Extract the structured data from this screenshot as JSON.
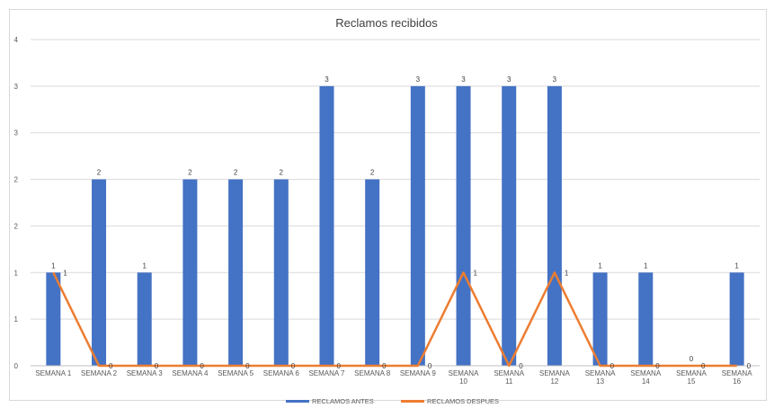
{
  "chart_data": {
    "type": "bar",
    "title": "Reclamos recibidos",
    "xlabel": "",
    "ylabel": "",
    "ylim": [
      0,
      3.5
    ],
    "y_tick_labels": [
      "0",
      "1",
      "1",
      "2",
      "2",
      "3",
      "3",
      "4"
    ],
    "categories": [
      [
        "SEMANA 1"
      ],
      [
        "SEMANA 2"
      ],
      [
        "SEMANA 3"
      ],
      [
        "SEMANA 4"
      ],
      [
        "SEMANA 5"
      ],
      [
        "SEMANA 6"
      ],
      [
        "SEMANA 7"
      ],
      [
        "SEMANA 8"
      ],
      [
        "SEMANA 9"
      ],
      [
        "SEMANA",
        "10"
      ],
      [
        "SEMANA",
        "11"
      ],
      [
        "SEMANA",
        "12"
      ],
      [
        "SEMANA",
        "13"
      ],
      [
        "SEMANA",
        "14"
      ],
      [
        "SEMANA",
        "15"
      ],
      [
        "SEMANA",
        "16"
      ]
    ],
    "series": [
      {
        "name": "RECLAMOS ANTES",
        "type": "bar",
        "color": "#4472c4",
        "values": [
          1,
          2,
          1,
          2,
          2,
          2,
          3,
          2,
          3,
          3,
          3,
          3,
          1,
          1,
          0,
          1
        ],
        "labels": [
          "1",
          "2",
          "1",
          "2",
          "2",
          "2",
          "3",
          "2",
          "3",
          "3",
          "3",
          "3",
          "1",
          "1",
          "0",
          "1"
        ]
      },
      {
        "name": "RECLAMOS DESPUES",
        "type": "line",
        "color": "#ed7d31",
        "values": [
          1,
          0,
          0,
          0,
          0,
          0,
          0,
          0,
          0,
          1,
          0,
          1,
          0,
          0,
          0,
          0
        ],
        "labels": [
          "1",
          "0",
          "0",
          "0",
          "0",
          "0",
          "0",
          "0",
          "0",
          "1",
          "0",
          "1",
          "0",
          "0",
          "0",
          "0"
        ]
      }
    ],
    "grid": true,
    "legend": "bottom"
  }
}
